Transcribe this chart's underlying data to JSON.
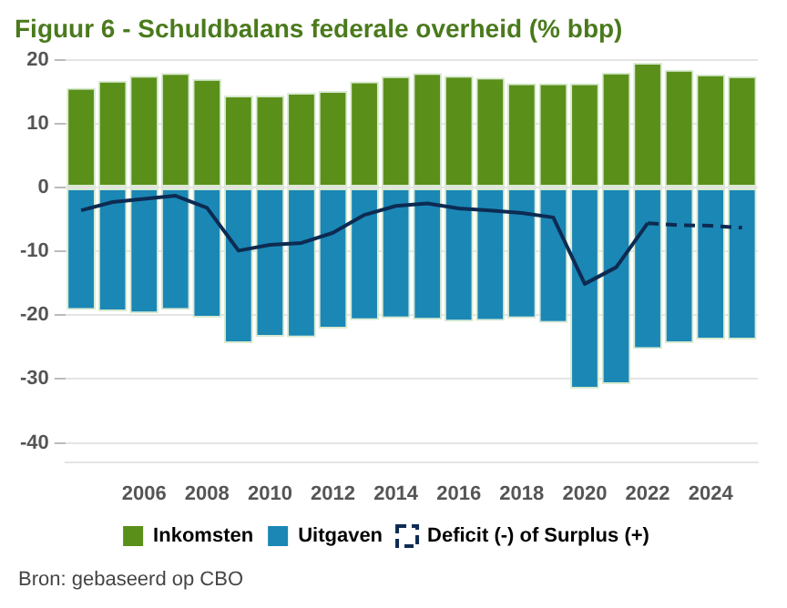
{
  "chart_data": {
    "type": "bar",
    "title": "Figuur 6 - Schuldbalans federale overheid (% bbp)",
    "categories": [
      null,
      null,
      "2006",
      null,
      "2008",
      null,
      "2010",
      null,
      "2012",
      null,
      "2014",
      null,
      "2016",
      null,
      "2018",
      null,
      "2020",
      null,
      "2022",
      null,
      "2024",
      null
    ],
    "series": [
      {
        "name": "Inkomsten",
        "color": "#5a8f1a",
        "values": [
          15.6,
          16.7,
          17.5,
          17.9,
          17.0,
          14.4,
          14.4,
          14.8,
          15.1,
          16.6,
          17.4,
          17.9,
          17.5,
          17.2,
          16.3,
          16.3,
          16.3,
          18.0,
          19.5,
          18.4,
          17.7,
          17.4
        ]
      },
      {
        "name": "Uitgaven",
        "color": "#1b87b5",
        "values": [
          -19.2,
          -19.4,
          -19.7,
          -19.2,
          -20.4,
          -24.4,
          -23.4,
          -23.5,
          -22.1,
          -20.8,
          -20.5,
          -20.7,
          -21.0,
          -20.9,
          -20.5,
          -21.2,
          -31.5,
          -30.8,
          -25.3,
          -24.4,
          -23.8,
          -23.8
        ]
      },
      {
        "name": "Deficit (-) of Surplus (+)",
        "type": "line",
        "line_style": "solid",
        "color": "#0d2b52",
        "values": [
          -3.6,
          -2.3,
          -1.8,
          -1.3,
          -3.2,
          -9.9,
          -9.0,
          -8.7,
          -7.1,
          -4.3,
          -2.9,
          -2.5,
          -3.3,
          -3.6,
          -4.0,
          -4.7,
          -15.1,
          -12.5,
          -5.6,
          null,
          null,
          null
        ]
      },
      {
        "type": "line",
        "line_style": "dashed",
        "color": "#0d2b52",
        "values": [
          null,
          null,
          null,
          null,
          null,
          null,
          null,
          null,
          null,
          null,
          null,
          null,
          null,
          null,
          null,
          null,
          null,
          null,
          -5.6,
          -5.9,
          -6.0,
          -6.3
        ]
      }
    ],
    "stacked": true,
    "ylim": [
      -43,
      20
    ],
    "yticks": [
      -40,
      -30,
      -20,
      -10,
      0,
      10,
      20
    ],
    "grid": "y",
    "legend": "bottom",
    "marker": "none",
    "annotations": [
      "Bron: gebaseerd op CBO"
    ]
  }
}
